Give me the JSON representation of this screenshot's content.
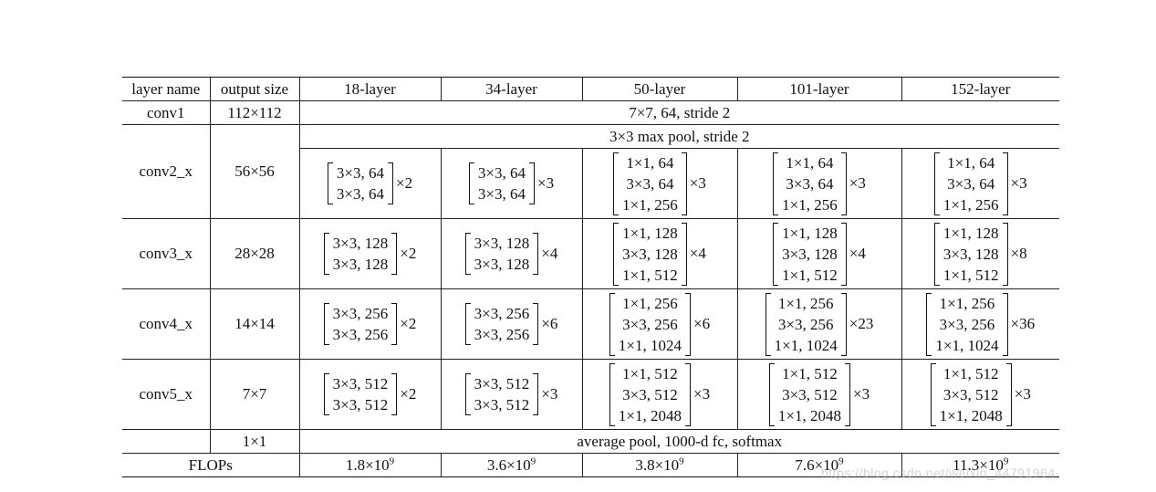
{
  "header": {
    "layer_name": "layer name",
    "output_size": "output size",
    "columns": [
      "18-layer",
      "34-layer",
      "50-layer",
      "101-layer",
      "152-layer"
    ]
  },
  "conv1": {
    "name": "conv1",
    "size": "112×112",
    "desc": "7×7, 64, stride 2"
  },
  "conv2": {
    "name": "conv2_x",
    "size": "56×56",
    "pool": "3×3 max pool, stride 2",
    "blocks": [
      {
        "lines": [
          "3×3, 64",
          "3×3, 64"
        ],
        "mult": "×2"
      },
      {
        "lines": [
          "3×3, 64",
          "3×3, 64"
        ],
        "mult": "×3"
      },
      {
        "lines": [
          "1×1, 64",
          "3×3, 64",
          "1×1, 256"
        ],
        "mult": "×3"
      },
      {
        "lines": [
          "1×1, 64",
          "3×3, 64",
          "1×1, 256"
        ],
        "mult": "×3"
      },
      {
        "lines": [
          "1×1, 64",
          "3×3, 64",
          "1×1, 256"
        ],
        "mult": "×3"
      }
    ]
  },
  "conv3": {
    "name": "conv3_x",
    "size": "28×28",
    "blocks": [
      {
        "lines": [
          "3×3, 128",
          "3×3, 128"
        ],
        "mult": "×2"
      },
      {
        "lines": [
          "3×3, 128",
          "3×3, 128"
        ],
        "mult": "×4"
      },
      {
        "lines": [
          "1×1, 128",
          "3×3, 128",
          "1×1, 512"
        ],
        "mult": "×4"
      },
      {
        "lines": [
          "1×1, 128",
          "3×3, 128",
          "1×1, 512"
        ],
        "mult": "×4"
      },
      {
        "lines": [
          "1×1, 128",
          "3×3, 128",
          "1×1, 512"
        ],
        "mult": "×8"
      }
    ]
  },
  "conv4": {
    "name": "conv4_x",
    "size": "14×14",
    "blocks": [
      {
        "lines": [
          "3×3, 256",
          "3×3, 256"
        ],
        "mult": "×2"
      },
      {
        "lines": [
          "3×3, 256",
          "3×3, 256"
        ],
        "mult": "×6"
      },
      {
        "lines": [
          "1×1, 256",
          "3×3, 256",
          "1×1, 1024"
        ],
        "mult": "×6"
      },
      {
        "lines": [
          "1×1, 256",
          "3×3, 256",
          "1×1, 1024"
        ],
        "mult": "×23"
      },
      {
        "lines": [
          "1×1, 256",
          "3×3, 256",
          "1×1, 1024"
        ],
        "mult": "×36"
      }
    ]
  },
  "conv5": {
    "name": "conv5_x",
    "size": "7×7",
    "blocks": [
      {
        "lines": [
          "3×3, 512",
          "3×3, 512"
        ],
        "mult": "×2"
      },
      {
        "lines": [
          "3×3, 512",
          "3×3, 512"
        ],
        "mult": "×3"
      },
      {
        "lines": [
          "1×1, 512",
          "3×3, 512",
          "1×1, 2048"
        ],
        "mult": "×3"
      },
      {
        "lines": [
          "1×1, 512",
          "3×3, 512",
          "1×1, 2048"
        ],
        "mult": "×3"
      },
      {
        "lines": [
          "1×1, 512",
          "3×3, 512",
          "1×1, 2048"
        ],
        "mult": "×3"
      }
    ]
  },
  "final": {
    "name": "",
    "size": "1×1",
    "desc": "average pool, 1000-d fc, softmax"
  },
  "flops": {
    "label": "FLOPs",
    "values": [
      {
        "mantissa": "1.8×10",
        "exp": "9"
      },
      {
        "mantissa": "3.6×10",
        "exp": "9"
      },
      {
        "mantissa": "3.8×10",
        "exp": "9"
      },
      {
        "mantissa": "7.6×10",
        "exp": "9"
      },
      {
        "mantissa": "11.3×10",
        "exp": "9"
      }
    ]
  },
  "watermark": "https://blog.csdn.net/weixin_44791964"
}
